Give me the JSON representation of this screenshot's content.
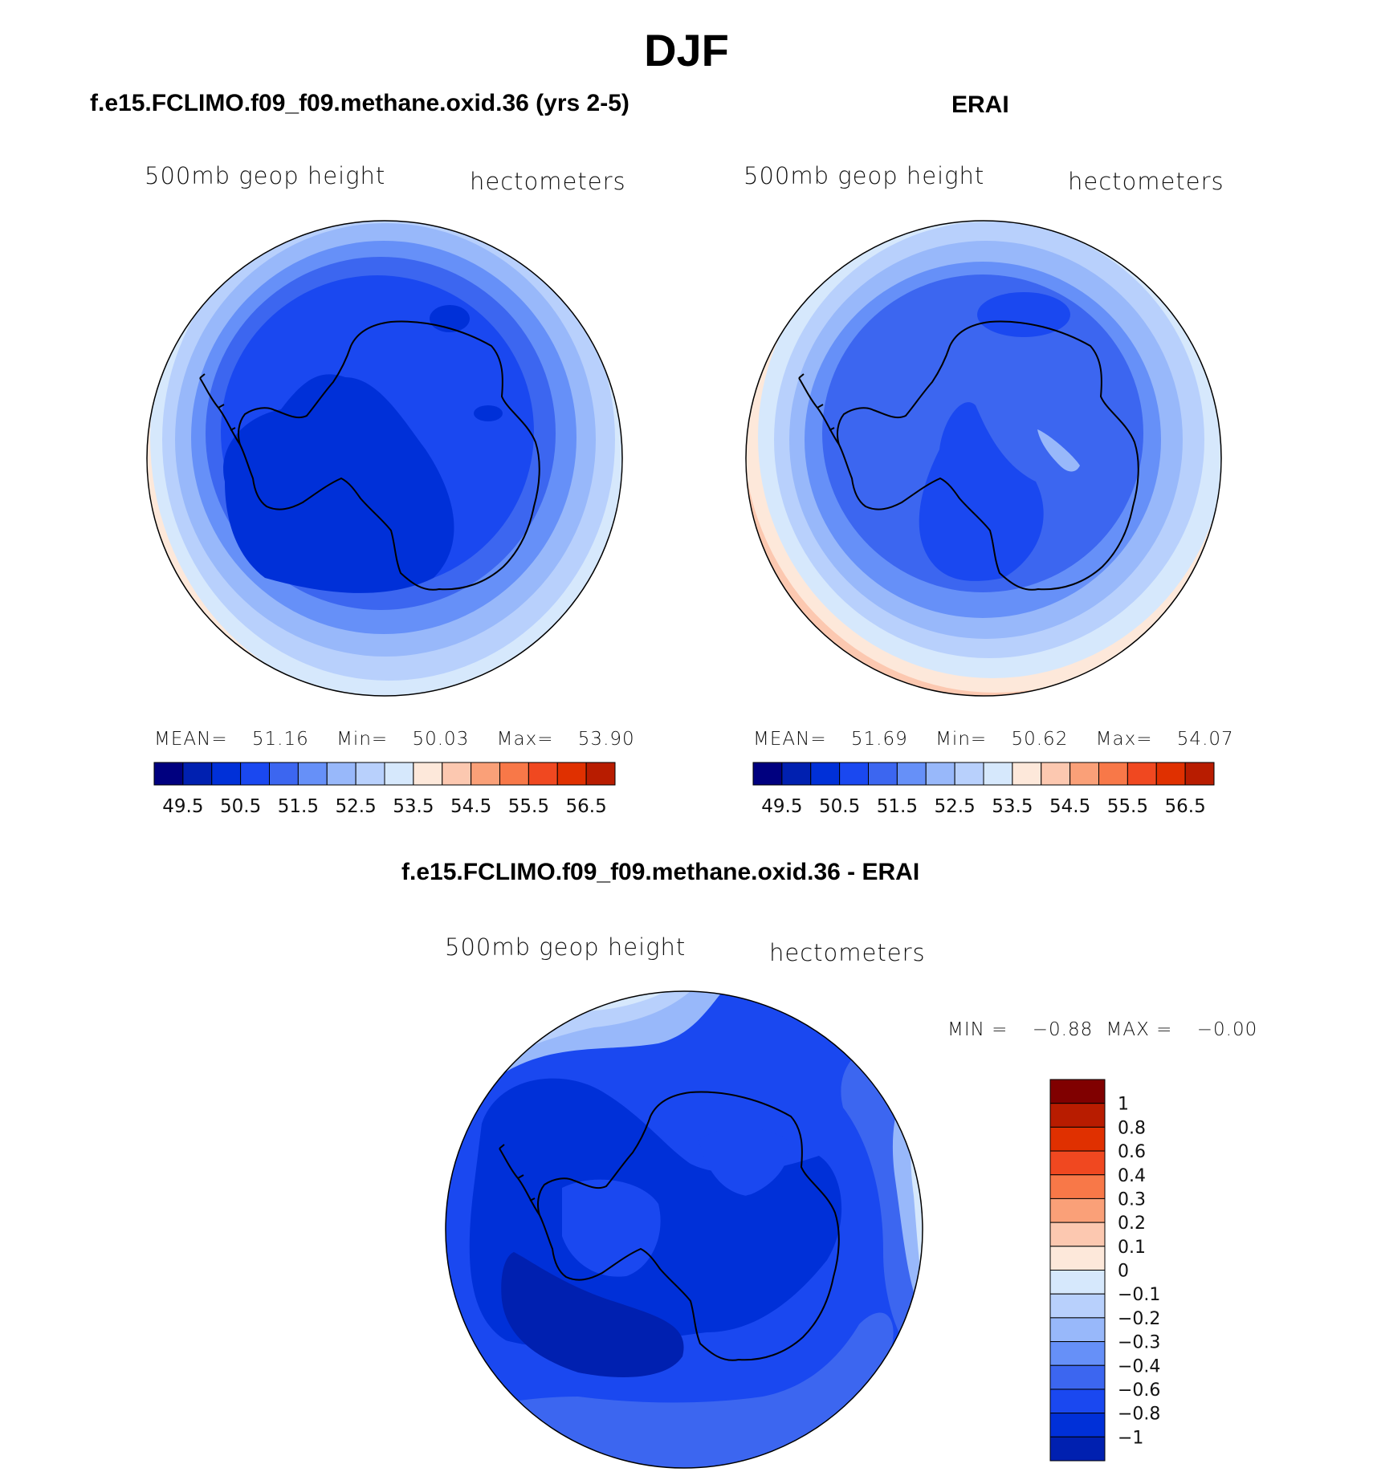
{
  "title": "DJF",
  "colors": {
    "scale": [
      "#00007f",
      "#0020b0",
      "#0030d8",
      "#1a48f0",
      "#3c66f0",
      "#6690f8",
      "#98b8fa",
      "#b8d0fc",
      "#d6e8fc",
      "#fde8da",
      "#fcc8b0",
      "#faa078",
      "#f87848",
      "#f04820",
      "#e03000",
      "#b81c00",
      "#800000"
    ],
    "outline": "#000000"
  },
  "panels": [
    {
      "id": "model",
      "title": "f.e15.FCLIMO.f09_f09.methane.oxid.36 (yrs 2-5)",
      "variable": "500mb geop height",
      "units": "hectometers",
      "stats": {
        "mean_label": "MEAN=",
        "mean": "51.16",
        "min_label": "Min=",
        "min": "50.03",
        "max_label": "Max=",
        "max": "53.90"
      },
      "colorbar_labels": [
        "49.5",
        "50.5",
        "51.5",
        "52.5",
        "53.5",
        "54.5",
        "55.5",
        "56.5"
      ],
      "colorbar_levels": [
        "49.5",
        "50",
        "50.5",
        "51",
        "51.5",
        "52",
        "52.5",
        "53",
        "53.5",
        "54",
        "54.5",
        "55",
        "55.5",
        "56",
        "56.5"
      ]
    },
    {
      "id": "obs",
      "title": "ERAI",
      "variable": "500mb geop height",
      "units": "hectometers",
      "stats": {
        "mean_label": "MEAN=",
        "mean": "51.69",
        "min_label": "Min=",
        "min": "50.62",
        "max_label": "Max=",
        "max": "54.07"
      },
      "colorbar_labels": [
        "49.5",
        "50.5",
        "51.5",
        "52.5",
        "53.5",
        "54.5",
        "55.5",
        "56.5"
      ]
    },
    {
      "id": "diff",
      "title": "f.e15.FCLIMO.f09_f09.methane.oxid.36 - ERAI",
      "variable": "500mb geop height",
      "units": "hectometers",
      "stats": {
        "min_label": "MIN =",
        "min": "−0.88",
        "max_label": "MAX =",
        "max": "−0.00"
      },
      "colorbar_labels": [
        "1",
        "0.8",
        "0.6",
        "0.4",
        "0.3",
        "0.2",
        "0.1",
        "0",
        "−0.1",
        "−0.2",
        "−0.3",
        "−0.4",
        "−0.6",
        "−0.8",
        "−1"
      ]
    }
  ]
}
